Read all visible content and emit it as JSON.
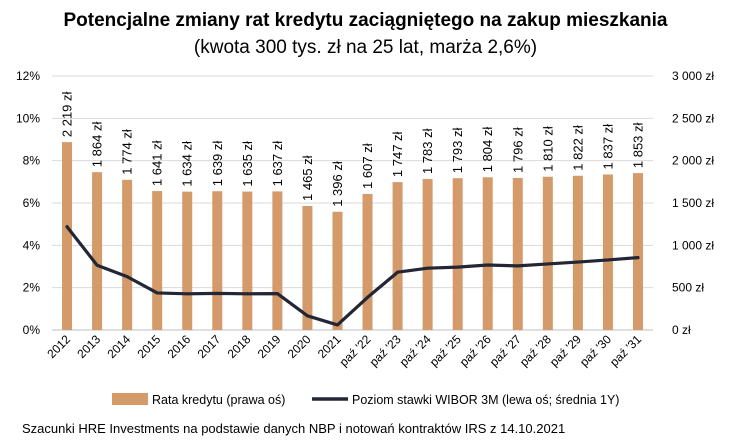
{
  "chart_data": {
    "type": "bar+line",
    "title": "Potencjalne zmiany rat kredytu zaciągniętego na zakup mieszkania",
    "subtitle": "(kwota 300 tys. zł na 25 lat, marża 2,6%)",
    "categories": [
      "2012",
      "2013",
      "2014",
      "2015",
      "2016",
      "2017",
      "2018",
      "2019",
      "2020",
      "2021",
      "paź '22",
      "paź '23",
      "paź '24",
      "paź '25",
      "paź '26",
      "paź '27",
      "paź '28",
      "paź '29",
      "paź '30",
      "paź '31"
    ],
    "series": [
      {
        "name": "Rata kredytu (prawa oś)",
        "type": "bar",
        "axis": "right",
        "color": "#D49A6A",
        "values": [
          2219,
          1864,
          1774,
          1641,
          1634,
          1639,
          1635,
          1637,
          1465,
          1396,
          1607,
          1747,
          1783,
          1793,
          1804,
          1796,
          1810,
          1822,
          1837,
          1853
        ],
        "labels": [
          "2 219 zł",
          "1 864 zł",
          "1 774 zł",
          "1 641 zł",
          "1 634 zł",
          "1 639 zł",
          "1 635 zł",
          "1 637 zł",
          "1 465 zł",
          "1 396 zł",
          "1 607 zł",
          "1 747 zł",
          "1 783 zł",
          "1 793 zł",
          "1 804 zł",
          "1 796 zł",
          "1 810 zł",
          "1 822 zł",
          "1 837 zł",
          "1 853 zł"
        ]
      },
      {
        "name": "Poziom stawki WIBOR 3M (lewa oś; średnia 1Y)",
        "type": "line",
        "axis": "left",
        "color": "#232634",
        "values": [
          4.88,
          3.06,
          2.52,
          1.75,
          1.71,
          1.73,
          1.71,
          1.72,
          0.67,
          0.24,
          1.54,
          2.73,
          2.92,
          2.97,
          3.07,
          3.03,
          3.12,
          3.21,
          3.31,
          3.42
        ]
      }
    ],
    "left_axis": {
      "min": 0,
      "max": 12,
      "ticks": [
        "0%",
        "2%",
        "4%",
        "6%",
        "8%",
        "10%",
        "12%"
      ]
    },
    "right_axis": {
      "min": 0,
      "max": 3000,
      "ticks": [
        "0 zł",
        "500 zł",
        "1 000 zł",
        "1 500 zł",
        "2 000 zł",
        "2 500 zł",
        "3 000 zł"
      ]
    },
    "grid": true,
    "legend_position": "bottom"
  },
  "source_note": "Szacunki HRE Investments na podstawie danych NBP i notowań kontraktów IRS z 14.10.2021"
}
